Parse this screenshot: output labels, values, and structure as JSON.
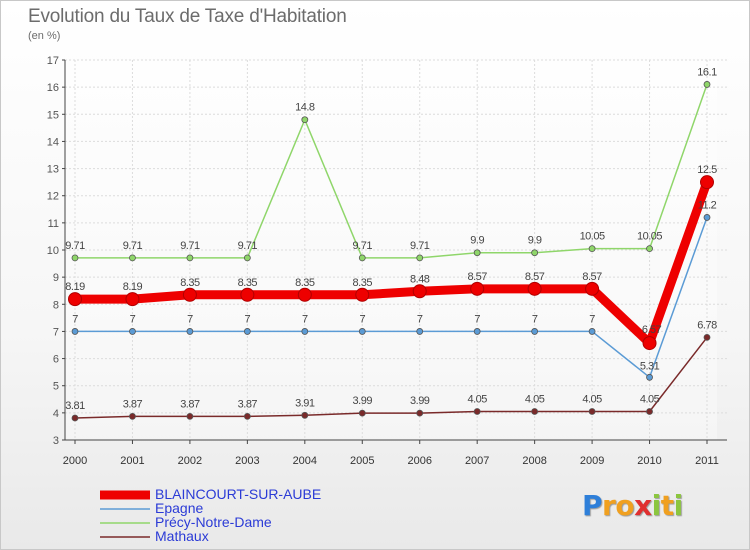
{
  "chart_data": {
    "type": "line",
    "title": "Evolution du Taux de Taxe d'Habitation",
    "ylabel": "(en %)",
    "ylim": [
      3,
      17
    ],
    "yticks": [
      "3",
      "4",
      "5",
      "6",
      "7",
      "8",
      "9",
      "10",
      "11",
      "12",
      "13",
      "14",
      "15",
      "16",
      "17"
    ],
    "x": [
      "2000",
      "2001",
      "2002",
      "2003",
      "2004",
      "2005",
      "2006",
      "2007",
      "2008",
      "2009",
      "2010",
      "2011"
    ],
    "series": [
      {
        "name": "BLAINCOURT-SUR-AUBE",
        "color": "#ee0000",
        "values": [
          8.19,
          8.19,
          8.35,
          8.35,
          8.35,
          8.35,
          8.48,
          8.57,
          8.57,
          8.57,
          6.57,
          12.5
        ],
        "labels": [
          "8.19",
          "8.19",
          "8.35",
          "8.35",
          "8.35",
          "8.35",
          "8.48",
          "8.57",
          "8.57",
          "8.57",
          "6.57",
          "12.5"
        ]
      },
      {
        "name": "Epagne",
        "color": "#5b9bd5",
        "values": [
          7,
          7,
          7,
          7,
          7,
          7,
          7,
          7,
          7,
          7,
          5.31,
          11.2
        ],
        "labels": [
          "7",
          "7",
          "7",
          "7",
          "7",
          "7",
          "7",
          "7",
          "7",
          "7",
          "5.31",
          "11.2"
        ]
      },
      {
        "name": "Précy-Notre-Dame",
        "color": "#8fd66a",
        "values": [
          9.71,
          9.71,
          9.71,
          9.71,
          14.8,
          9.71,
          9.71,
          9.9,
          9.9,
          10.05,
          10.05,
          16.1
        ],
        "labels": [
          "9.71",
          "9.71",
          "9.71",
          "9.71",
          "14.8",
          "9.71",
          "9.71",
          "9.9",
          "9.9",
          "10.05",
          "10.05",
          "16.1"
        ]
      },
      {
        "name": "Mathaux",
        "color": "#7a2a2a",
        "values": [
          3.81,
          3.87,
          3.87,
          3.87,
          3.91,
          3.99,
          3.99,
          4.05,
          4.05,
          4.05,
          4.05,
          6.78
        ],
        "labels": [
          "3.81",
          "3.87",
          "3.87",
          "3.87",
          "3.91",
          "3.99",
          "3.99",
          "4.05",
          "4.05",
          "4.05",
          "4.05",
          "6.78"
        ]
      }
    ],
    "legend_position": "bottom-left"
  },
  "logo": {
    "text": "Proxiti",
    "letters": [
      "P",
      "r",
      "o",
      "x",
      "i",
      "t",
      "i"
    ],
    "colors": [
      "#2e7fd9",
      "#f0a020",
      "#f0a020",
      "#e03030",
      "#8cc63f",
      "#f0a020",
      "#8cc63f"
    ]
  }
}
